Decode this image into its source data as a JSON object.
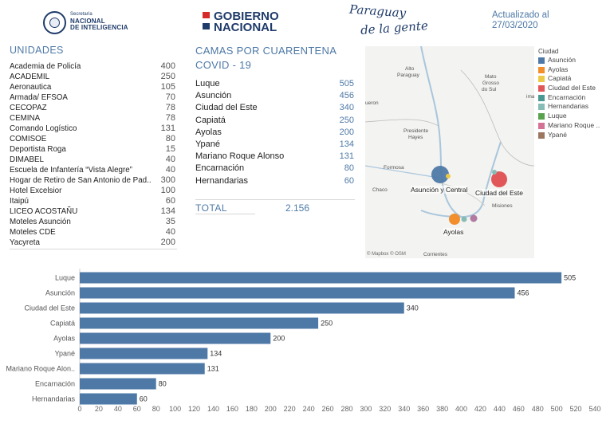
{
  "header": {
    "sni_small": "Secretaría",
    "sni_line1": "NACIONAL",
    "sni_line2": "DE INTELIGENCIA",
    "gobierno_line1": "GOBIERNO",
    "gobierno_line2": "NACIONAL",
    "slogan_line1": "Paraguay",
    "slogan_line2": "de la gente",
    "updated_label": "Actualizado al",
    "updated_date": "27/03/2020"
  },
  "unidades": {
    "title": "UNIDADES",
    "rows": [
      {
        "name": "Academia de Policía",
        "value": "400"
      },
      {
        "name": "ACADEMIL",
        "value": "250"
      },
      {
        "name": "Aeronautica",
        "value": "105"
      },
      {
        "name": "Armada/ EFSOA",
        "value": "70"
      },
      {
        "name": "CECOPAZ",
        "value": "78"
      },
      {
        "name": "CEMINA",
        "value": "78"
      },
      {
        "name": "Comando Logístico",
        "value": "131"
      },
      {
        "name": "COMISOE",
        "value": "80"
      },
      {
        "name": "Deportista Roga",
        "value": "15"
      },
      {
        "name": "DIMABEL",
        "value": "40"
      },
      {
        "name": "Escuela de Infantería “Vista Alegre”",
        "value": "40"
      },
      {
        "name": "Hogar de Retiro de San Antonio de Pad..",
        "value": "300"
      },
      {
        "name": "Hotel Excelsior",
        "value": "100"
      },
      {
        "name": "Itaipú",
        "value": "60"
      },
      {
        "name": "LICEO ACOSTAÑU",
        "value": "134"
      },
      {
        "name": "Moteles Asunción",
        "value": "35"
      },
      {
        "name": "Moteles CDE",
        "value": "40"
      },
      {
        "name": "Yacyreta",
        "value": "200"
      }
    ]
  },
  "camas": {
    "title_line1": "CAMAS POR CUARENTENA",
    "title_line2": "COVID - 19",
    "rows": [
      {
        "name": "Luque",
        "value": "505"
      },
      {
        "name": "Asunción",
        "value": "456"
      },
      {
        "name": "Ciudad del Este",
        "value": "340"
      },
      {
        "name": "Capiatá",
        "value": "250"
      },
      {
        "name": "Ayolas",
        "value": "200"
      },
      {
        "name": "Ypané",
        "value": "134"
      },
      {
        "name": "Mariano Roque Alonso",
        "value": "131"
      },
      {
        "name": "Encarnación",
        "value": "80"
      },
      {
        "name": "Hernandarias",
        "value": "60"
      }
    ],
    "total_label": "TOTAL",
    "total_value": "2.156"
  },
  "map": {
    "credit": "© Mapbox © OSM",
    "place_labels": [
      "Alto",
      "Paraguay",
      "Mato",
      "Grosso",
      "do Sul",
      "Presidente",
      "Hayes",
      "Formosa",
      "Chaco",
      "Misiones",
      "Corrientes",
      "ueron",
      "iman"
    ],
    "city_labels": [
      "Asunción y Central",
      "Ciudad del Este",
      "Ayolas"
    ]
  },
  "legend": {
    "title": "Ciudad",
    "items": [
      {
        "label": "Asunción",
        "color": "#4e79a7"
      },
      {
        "label": "Ayolas",
        "color": "#f28e2b"
      },
      {
        "label": "Capiatá",
        "color": "#edc948"
      },
      {
        "label": "Ciudad del Este",
        "color": "#e15759"
      },
      {
        "label": "Encarnación",
        "color": "#499894"
      },
      {
        "label": "Hernandarias",
        "color": "#86bcb6"
      },
      {
        "label": "Luque",
        "color": "#59a14f"
      },
      {
        "label": "Mariano Roque ..",
        "color": "#d37295"
      },
      {
        "label": "Ypané",
        "color": "#9d7660"
      }
    ]
  },
  "chart_data": {
    "type": "bar",
    "orientation": "horizontal",
    "categories": [
      "Luque",
      "Asunción",
      "Ciudad del Este",
      "Capiatá",
      "Ayolas",
      "Ypané",
      "Mariano Roque Alon..",
      "Encarnación",
      "Hernandarias"
    ],
    "values": [
      505,
      456,
      340,
      250,
      200,
      134,
      131,
      80,
      60
    ],
    "value_labels": [
      "505",
      "456",
      "340",
      "250",
      "200",
      "134",
      "131",
      "80",
      "60"
    ],
    "xticks": [
      "0",
      "20",
      "40",
      "60",
      "80",
      "100",
      "120",
      "140",
      "160",
      "180",
      "200",
      "220",
      "240",
      "260",
      "280",
      "300",
      "320",
      "340",
      "360",
      "380",
      "400",
      "420",
      "440",
      "460",
      "480",
      "500",
      "520",
      "540"
    ],
    "xlim": [
      0,
      540
    ],
    "bar_color": "#4e79a7",
    "title": "",
    "xlabel": "",
    "ylabel": ""
  }
}
